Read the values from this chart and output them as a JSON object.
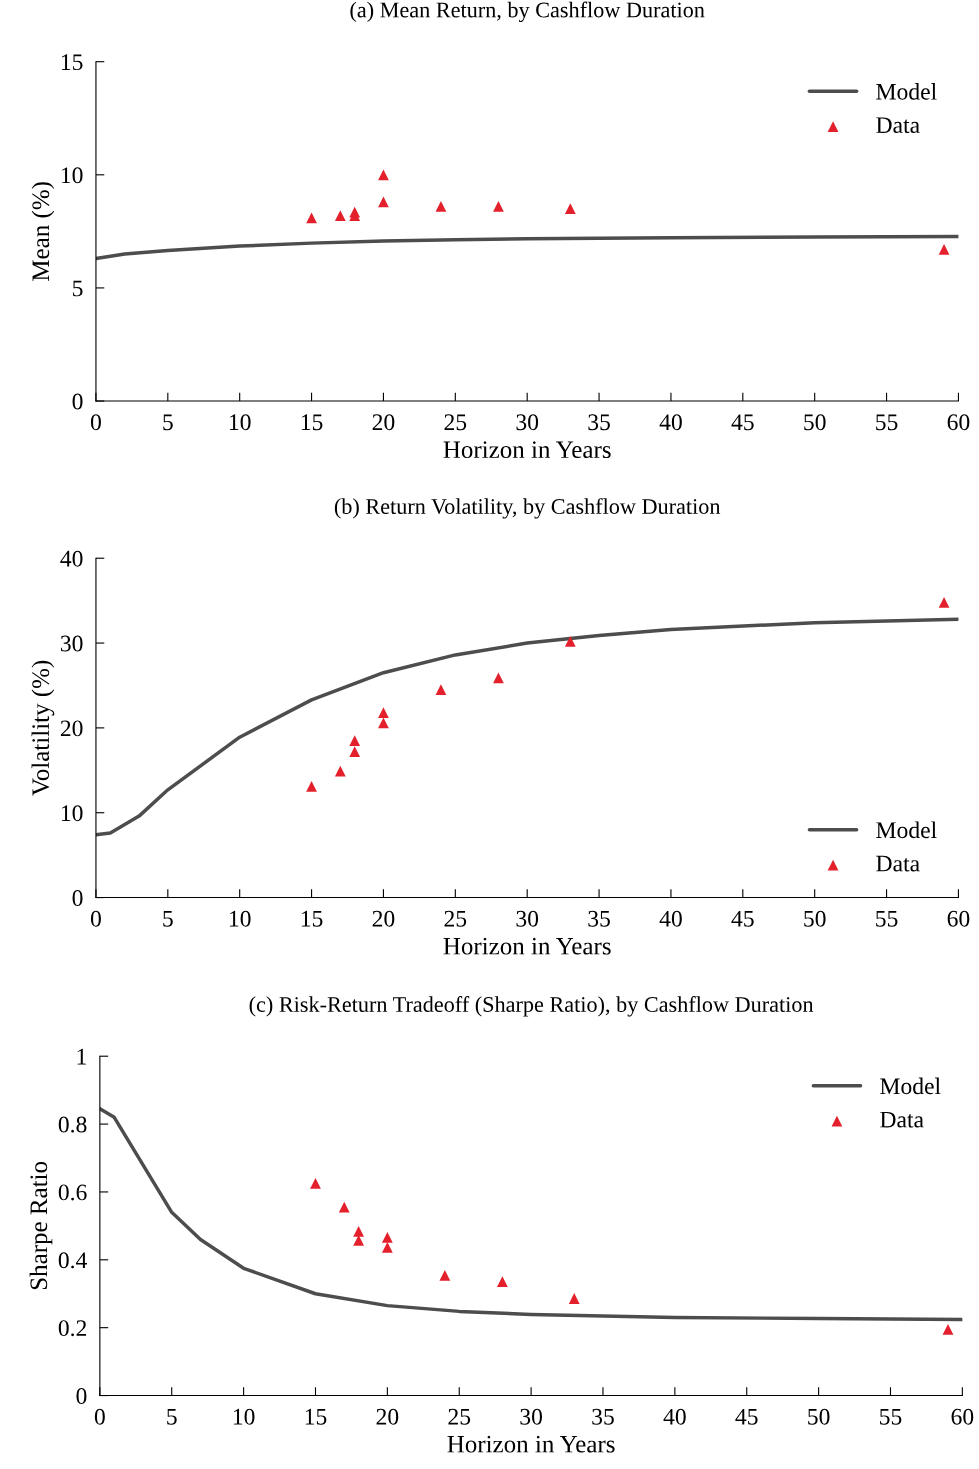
{
  "chart_data": [
    {
      "type": "line",
      "title": "(a) Mean Return, by Cashflow Duration",
      "xlabel": "Horizon in Years",
      "ylabel": "Mean (%)",
      "xlim": [
        0,
        60
      ],
      "xticks": [
        0,
        5,
        10,
        15,
        20,
        25,
        30,
        35,
        40,
        45,
        50,
        55,
        60
      ],
      "ylim": [
        0,
        15
      ],
      "yticks": [
        0,
        5,
        10,
        15
      ],
      "grid": false,
      "legend": "top right",
      "series": [
        {
          "name": "Model",
          "color": "#4d4d4d",
          "marker": "none",
          "line_style": "solid",
          "x": [
            0,
            2,
            5,
            10,
            15,
            20,
            25,
            30,
            40,
            50,
            60
          ],
          "values": [
            6.3,
            6.5,
            6.65,
            6.85,
            6.98,
            7.07,
            7.13,
            7.17,
            7.22,
            7.25,
            7.27
          ]
        },
        {
          "name": "Data",
          "type": "scatter",
          "color": "#e3202b",
          "marker": "triangle",
          "x": [
            15,
            17,
            18,
            18,
            20,
            20,
            24,
            28,
            33,
            59
          ],
          "values": [
            8.1,
            8.2,
            8.35,
            8.2,
            10.0,
            8.8,
            8.6,
            8.6,
            8.5,
            6.7
          ]
        }
      ]
    },
    {
      "type": "line",
      "title": "(b) Return Volatility, by Cashflow Duration",
      "xlabel": "Horizon in Years",
      "ylabel": "Volatility (%)",
      "xlim": [
        0,
        60
      ],
      "xticks": [
        0,
        5,
        10,
        15,
        20,
        25,
        30,
        35,
        40,
        45,
        50,
        55,
        60
      ],
      "ylim": [
        0,
        40
      ],
      "yticks": [
        0,
        10,
        20,
        30,
        40
      ],
      "grid": false,
      "legend": "bottom right",
      "series": [
        {
          "name": "Model",
          "color": "#4d4d4d",
          "marker": "none",
          "line_style": "solid",
          "x": [
            0,
            1,
            2,
            3,
            5,
            10,
            15,
            20,
            25,
            30,
            35,
            40,
            50,
            60
          ],
          "values": [
            7.4,
            7.6,
            8.6,
            9.6,
            12.7,
            18.9,
            23.3,
            26.5,
            28.6,
            30.0,
            30.9,
            31.6,
            32.4,
            32.8
          ]
        },
        {
          "name": "Data",
          "type": "scatter",
          "color": "#e3202b",
          "marker": "triangle",
          "x": [
            15,
            17,
            18,
            18,
            20,
            20,
            24,
            28,
            33,
            59
          ],
          "values": [
            13.1,
            14.9,
            18.5,
            17.2,
            21.8,
            20.6,
            24.5,
            25.9,
            30.2,
            34.8
          ]
        }
      ]
    },
    {
      "type": "line",
      "title": "(c) Risk-Return Tradeoff (Sharpe Ratio), by Cashflow Duration",
      "xlabel": "Horizon in Years",
      "ylabel": "Sharpe Ratio",
      "xlim": [
        0,
        60
      ],
      "xticks": [
        0,
        5,
        10,
        15,
        20,
        25,
        30,
        35,
        40,
        45,
        50,
        55,
        60
      ],
      "ylim": [
        0,
        1
      ],
      "yticks": [
        0,
        0.2,
        0.4,
        0.6,
        0.8,
        1
      ],
      "grid": false,
      "legend": "top right",
      "series": [
        {
          "name": "Model",
          "color": "#4d4d4d",
          "marker": "none",
          "line_style": "solid",
          "x": [
            0,
            1,
            2,
            3,
            5,
            7,
            10,
            15,
            20,
            25,
            30,
            40,
            50,
            60
          ],
          "values": [
            0.845,
            0.82,
            0.75,
            0.68,
            0.54,
            0.46,
            0.375,
            0.3,
            0.265,
            0.248,
            0.239,
            0.23,
            0.227,
            0.224
          ]
        },
        {
          "name": "Data",
          "type": "scatter",
          "color": "#e3202b",
          "marker": "triangle",
          "x": [
            15,
            17,
            18,
            18,
            20,
            20,
            24,
            28,
            33,
            59
          ],
          "values": [
            0.625,
            0.555,
            0.484,
            0.457,
            0.466,
            0.437,
            0.354,
            0.336,
            0.286,
            0.195
          ]
        }
      ]
    }
  ]
}
